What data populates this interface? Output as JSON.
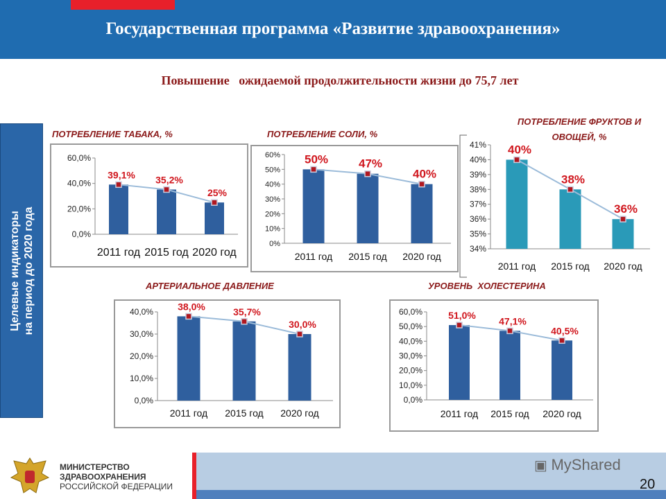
{
  "header": {
    "title": "Государственная программа «Развитие здравоохранения»",
    "subtitle": "Повышение   ожидаемой продолжительности жизни до 75,7 лет"
  },
  "sidebar": {
    "line1": "Целевые индикаторы",
    "line2": "на период до 2020 года"
  },
  "colors": {
    "header": "#1f6cb0",
    "bar": "#2f5f9e",
    "bar_fruit": "#2a9ab8",
    "label": "#d0161d",
    "title": "#8b1a1a",
    "line": "#9bbbd9"
  },
  "chart_data": [
    {
      "type": "bar",
      "title": "ПОТРЕБЛЕНИЕ ТАБАКА, %",
      "categories": [
        "2011 год",
        "2015 год",
        "2020 год"
      ],
      "values": [
        39.1,
        35.2,
        25
      ],
      "data_labels": [
        "39,1%",
        "35,2%",
        "25%"
      ],
      "ylim": [
        0,
        60
      ],
      "yticks": [
        "0,0%",
        "20,0%",
        "40,0%",
        "60,0%"
      ],
      "line_overlay": true,
      "grid": false
    },
    {
      "type": "bar",
      "title": "ПОТРЕБЛЕНИЕ СОЛИ, %",
      "categories": [
        "2011 год",
        "2015 год",
        "2020 год"
      ],
      "values": [
        50,
        47,
        40
      ],
      "data_labels": [
        "50%",
        "47%",
        "40%"
      ],
      "ylim": [
        0,
        60
      ],
      "yticks": [
        "0%",
        "10%",
        "20%",
        "30%",
        "40%",
        "50%",
        "60%"
      ],
      "line_overlay": true,
      "grid": false
    },
    {
      "type": "bar",
      "title": "ПОТРЕБЛЕНИЕ ФРУКТОВ И ОВОЩЕЙ, %",
      "categories": [
        "2011 год",
        "2015 год",
        "2020 год"
      ],
      "values": [
        40,
        38,
        36
      ],
      "data_labels": [
        "40%",
        "38%",
        "36%"
      ],
      "ylim": [
        34,
        41
      ],
      "yticks": [
        "34%",
        "35%",
        "36%",
        "37%",
        "38%",
        "39%",
        "40%",
        "41%"
      ],
      "line_overlay": true,
      "grid": false
    },
    {
      "type": "bar",
      "title": "АРТЕРИАЛЬНОЕ ДАВЛЕНИЕ",
      "categories": [
        "2011 год",
        "2015 год",
        "2020 год"
      ],
      "values": [
        38.0,
        35.7,
        30.0
      ],
      "data_labels": [
        "38,0%",
        "35,7%",
        "30,0%"
      ],
      "ylim": [
        0,
        40
      ],
      "yticks": [
        "0,0%",
        "10,0%",
        "20,0%",
        "30,0%",
        "40,0%"
      ],
      "line_overlay": true,
      "grid": false
    },
    {
      "type": "bar",
      "title": "УРОВЕНЬ  ХОЛЕСТЕРИНА",
      "categories": [
        "2011 год",
        "2015 год",
        "2020 год"
      ],
      "values": [
        51.0,
        47.1,
        40.5
      ],
      "data_labels": [
        "51,0%",
        "47,1%",
        "40,5%"
      ],
      "ylim": [
        0,
        60
      ],
      "yticks": [
        "0,0%",
        "10,0%",
        "20,0%",
        "30,0%",
        "40,0%",
        "50,0%",
        "60,0%"
      ],
      "line_overlay": true,
      "grid": false
    }
  ],
  "footer": {
    "ministry_line1": "МИНИСТЕРСТВО",
    "ministry_line2": "ЗДРАВООХРАНЕНИЯ",
    "ministry_line3": "РОССИЙСКОЙ ФЕДЕРАЦИИ",
    "watermark": "MyShared",
    "page_number": "20"
  }
}
